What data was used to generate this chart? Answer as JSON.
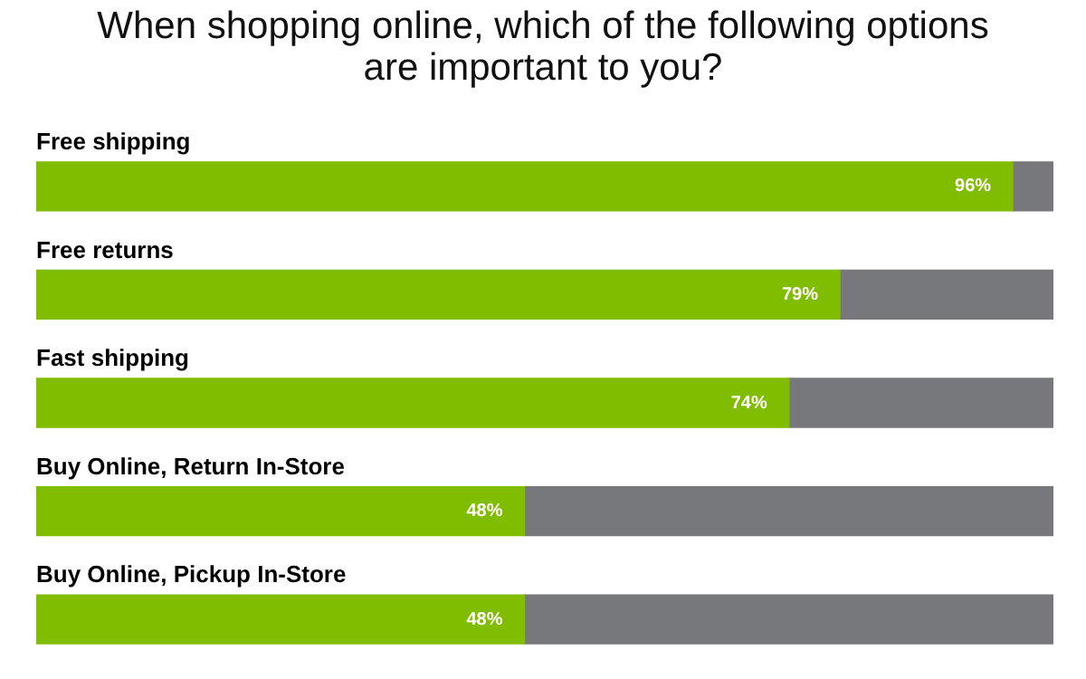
{
  "chart_data": {
    "type": "bar",
    "orientation": "horizontal",
    "stacked": true,
    "title": "When shopping online, which of the following options are important to you?",
    "categories": [
      "Free shipping",
      "Free returns",
      "Fast shipping",
      "Buy Online, Return In-Store",
      "Buy Online, Pickup In-Store"
    ],
    "series": [
      {
        "color": "#80bc00",
        "values": [
          96,
          79,
          74,
          48,
          48
        ],
        "value_labels": [
          "96%",
          "79%",
          "74%",
          "48%",
          "48%"
        ]
      },
      {
        "color": "#77787b",
        "values": [
          4,
          21,
          26,
          52,
          52
        ]
      }
    ],
    "xlim": [
      0,
      100
    ],
    "tick_labels": false,
    "legend": false
  }
}
